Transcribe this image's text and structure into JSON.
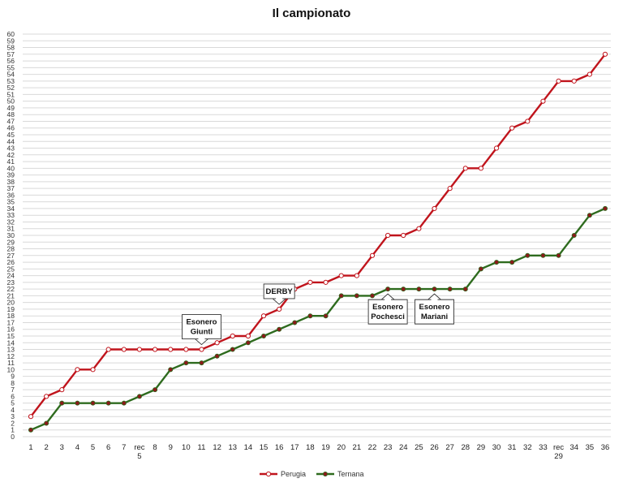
{
  "chart_data": {
    "type": "line",
    "title": "Il campionato",
    "xlabel": "",
    "ylabel": "",
    "ylim": [
      0,
      60
    ],
    "categories": [
      "1",
      "2",
      "3",
      "4",
      "5",
      "6",
      "7",
      "rec 5",
      "8",
      "9",
      "10",
      "11",
      "12",
      "13",
      "14",
      "15",
      "16",
      "17",
      "18",
      "19",
      "20",
      "21",
      "22",
      "23",
      "24",
      "25",
      "26",
      "27",
      "28",
      "29",
      "30",
      "31",
      "32",
      "33",
      "rec 29",
      "34",
      "35",
      "36"
    ],
    "series": [
      {
        "name": "Perugia",
        "color": "#c0141c",
        "marker": "hollow",
        "values": [
          3,
          6,
          7,
          10,
          10,
          13,
          13,
          13,
          13,
          13,
          13,
          13,
          14,
          15,
          15,
          18,
          19,
          22,
          23,
          23,
          24,
          24,
          27,
          30,
          30,
          31,
          34,
          37,
          40,
          40,
          43,
          46,
          47,
          50,
          53,
          53,
          54,
          57
        ]
      },
      {
        "name": "Ternana",
        "color": "#2e6b1e",
        "marker": "filled",
        "values": [
          1,
          2,
          5,
          5,
          5,
          5,
          5,
          6,
          7,
          10,
          11,
          11,
          12,
          13,
          14,
          15,
          16,
          17,
          18,
          18,
          21,
          21,
          21,
          22,
          22,
          22,
          22,
          22,
          22,
          25,
          26,
          26,
          27,
          27,
          27,
          30,
          33,
          34
        ]
      }
    ],
    "annotations": [
      {
        "lines": [
          "Esonero",
          "Giunti"
        ],
        "category_index": 11,
        "value": 13,
        "pointer": "down"
      },
      {
        "lines": [
          "DERBY"
        ],
        "category_index": 16,
        "value": 19,
        "pointer": "down"
      },
      {
        "lines": [
          "Esonero",
          "Pochesci"
        ],
        "category_index": 23,
        "value": 22,
        "pointer": "up"
      },
      {
        "lines": [
          "Esonero",
          "Mariani"
        ],
        "category_index": 26,
        "value": 22,
        "pointer": "up"
      }
    ],
    "grid": true,
    "legend": "bottom"
  }
}
